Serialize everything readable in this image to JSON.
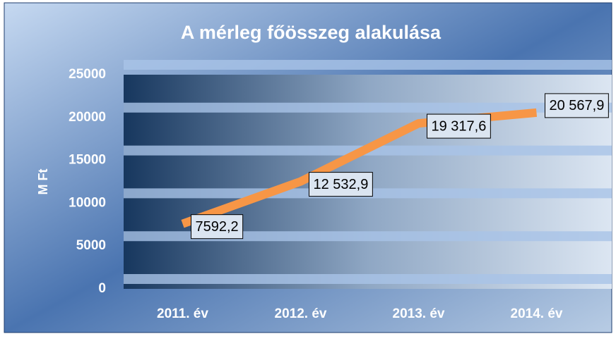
{
  "chart_data": {
    "type": "line",
    "title": "A mérleg főösszeg alakulása",
    "y_label": "M Ft",
    "categories": [
      "2011. év",
      "2012. év",
      "2013. év",
      "2014. év"
    ],
    "values": [
      7592.2,
      12532.9,
      19317.6,
      20567.9
    ],
    "value_labels": [
      "7592,2",
      "12 532,9",
      "19 317,6",
      "20 567,9"
    ],
    "color": "#f79646",
    "ylim": [
      0,
      25000
    ],
    "yticks": [
      0,
      5000,
      10000,
      15000,
      20000,
      25000
    ],
    "grid": true
  }
}
